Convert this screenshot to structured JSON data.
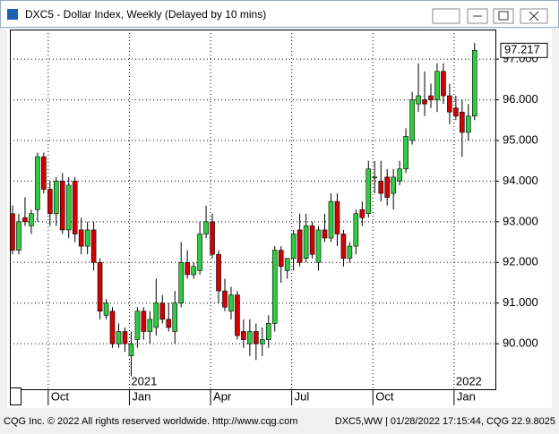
{
  "window_title": "DXC5 - Dollar Index, Weekly (Delayed by 10 mins)",
  "chart_data": {
    "type": "candlestick",
    "categories": [
      null,
      null,
      null,
      null,
      null,
      null,
      "Oct",
      null,
      null,
      null,
      null,
      null,
      null,
      null,
      null,
      null,
      null,
      null,
      null,
      "Jan",
      null,
      null,
      null,
      null,
      null,
      null,
      null,
      null,
      null,
      null,
      null,
      null,
      "Apr",
      null,
      null,
      null,
      null,
      null,
      null,
      null,
      null,
      null,
      null,
      null,
      null,
      "Jul",
      null,
      null,
      null,
      null,
      null,
      null,
      null,
      null,
      null,
      null,
      null,
      null,
      "Oct",
      null,
      null,
      null,
      null,
      null,
      null,
      null,
      null,
      null,
      null,
      null,
      null,
      "Jan",
      null,
      null,
      null
    ],
    "years": [
      null,
      null,
      null,
      null,
      null,
      null,
      null,
      null,
      null,
      null,
      null,
      null,
      null,
      null,
      null,
      null,
      null,
      null,
      null,
      "2021",
      null,
      null,
      null,
      null,
      null,
      null,
      null,
      null,
      null,
      null,
      null,
      null,
      null,
      null,
      null,
      null,
      null,
      null,
      null,
      null,
      null,
      null,
      null,
      null,
      null,
      null,
      null,
      null,
      null,
      null,
      null,
      null,
      null,
      null,
      null,
      null,
      null,
      null,
      null,
      null,
      null,
      null,
      null,
      null,
      null,
      null,
      null,
      null,
      null,
      null,
      null,
      "2022",
      null,
      null,
      null
    ],
    "open": [
      93.2,
      92.3,
      93.1,
      92.9,
      93.3,
      94.6,
      93.8,
      93.2,
      94.0,
      92.8,
      94.0,
      92.8,
      92.4,
      92.8,
      92.0,
      90.7,
      90.8,
      90.0,
      90.3,
      89.7,
      90.1,
      90.8,
      90.3,
      90.4,
      91.0,
      90.6,
      90.3,
      91.0,
      92.0,
      91.7,
      91.8,
      92.7,
      93.0,
      92.2,
      91.3,
      90.8,
      91.2,
      90.3,
      90.0,
      90.3,
      90.0,
      90.1,
      90.5,
      92.3,
      91.8,
      92.1,
      92.8,
      92.1,
      92.9,
      92.0,
      92.8,
      92.6,
      93.5,
      92.7,
      92.1,
      92.4,
      93.3,
      93.2,
      94.1,
      94.0,
      94.1,
      93.7,
      94.0,
      94.3,
      95.0,
      95.9,
      96.0,
      96.1,
      96.0,
      96.7,
      96.1,
      95.8,
      95.7,
      95.2,
      95.6
    ],
    "high": [
      93.4,
      93.2,
      93.6,
      93.3,
      94.7,
      94.7,
      94.0,
      94.1,
      94.2,
      94.1,
      94.1,
      93.1,
      93.0,
      93.0,
      92.1,
      91.1,
      90.9,
      90.5,
      90.4,
      90.3,
      90.9,
      90.9,
      90.8,
      91.6,
      91.2,
      91.0,
      91.3,
      92.5,
      92.3,
      92.0,
      93.0,
      93.4,
      93.2,
      92.3,
      91.6,
      91.4,
      91.3,
      90.6,
      90.6,
      90.5,
      90.4,
      90.7,
      92.4,
      92.4,
      92.1,
      92.8,
      93.2,
      93.2,
      93.0,
      92.9,
      93.2,
      93.7,
      93.7,
      92.8,
      92.5,
      93.3,
      93.5,
      94.5,
      94.5,
      94.5,
      94.3,
      94.3,
      94.5,
      95.3,
      96.2,
      96.9,
      96.7,
      96.4,
      96.9,
      96.9,
      96.4,
      96.1,
      96.0,
      95.9,
      97.4
    ],
    "low": [
      92.2,
      92.2,
      92.9,
      92.7,
      93.0,
      93.7,
      92.9,
      92.9,
      92.7,
      92.6,
      92.5,
      92.2,
      92.2,
      91.8,
      90.6,
      90.6,
      89.9,
      89.9,
      89.8,
      89.2,
      89.9,
      90.1,
      90.0,
      90.2,
      90.5,
      90.3,
      90.0,
      90.9,
      91.6,
      91.6,
      91.7,
      92.6,
      92.1,
      91.0,
      90.8,
      90.6,
      90.1,
      89.9,
      89.7,
      89.6,
      89.7,
      89.9,
      90.3,
      91.5,
      91.6,
      91.8,
      91.9,
      92.0,
      92.1,
      91.8,
      92.5,
      92.5,
      92.4,
      91.9,
      92.0,
      92.2,
      92.9,
      93.1,
      93.7,
      93.5,
      93.4,
      93.3,
      93.9,
      94.2,
      94.9,
      95.7,
      95.6,
      95.8,
      95.7,
      95.9,
      95.4,
      95.5,
      94.6,
      95.0,
      95.5
    ],
    "close": [
      92.3,
      93.0,
      93.0,
      93.2,
      94.6,
      93.8,
      93.2,
      94.0,
      92.8,
      93.9,
      92.7,
      92.4,
      92.8,
      92.0,
      90.8,
      91.0,
      90.0,
      90.3,
      90.0,
      90.0,
      90.8,
      90.3,
      90.6,
      91.0,
      90.6,
      90.4,
      91.0,
      92.0,
      91.7,
      91.9,
      92.7,
      93.0,
      92.2,
      91.3,
      90.9,
      91.2,
      90.2,
      90.1,
      90.3,
      90.0,
      90.1,
      90.5,
      92.3,
      91.9,
      92.1,
      92.7,
      92.0,
      92.9,
      92.2,
      92.8,
      92.6,
      93.5,
      92.7,
      92.1,
      92.4,
      93.2,
      93.1,
      94.3,
      94.1,
      93.7,
      93.6,
      94.1,
      94.3,
      95.1,
      96.0,
      96.1,
      95.9,
      96.0,
      96.7,
      96.1,
      95.7,
      95.6,
      95.2,
      95.6,
      97.217
    ],
    "up_color": "#2ecc40",
    "down_color": "#d40000",
    "ylim": [
      88.88,
      97.73
    ],
    "yticks": [
      {
        "value": 90,
        "label": "90.000"
      },
      {
        "value": 91,
        "label": "91.000"
      },
      {
        "value": 92,
        "label": "92.000"
      },
      {
        "value": 93,
        "label": "93.000"
      },
      {
        "value": 94,
        "label": "94.000"
      },
      {
        "value": 95,
        "label": "95.000"
      },
      {
        "value": 96,
        "label": "96.000"
      },
      {
        "value": 97,
        "label": "97.000"
      }
    ],
    "grid": true,
    "last_value_label": "97.217"
  },
  "footer": {
    "left": "CQG Inc. © 2022 All rights reserved worldwide. http://www.cqg.com",
    "right": "DXC5,WW | 01/28/2022 17:15:44, CQG 22.9.8025"
  }
}
